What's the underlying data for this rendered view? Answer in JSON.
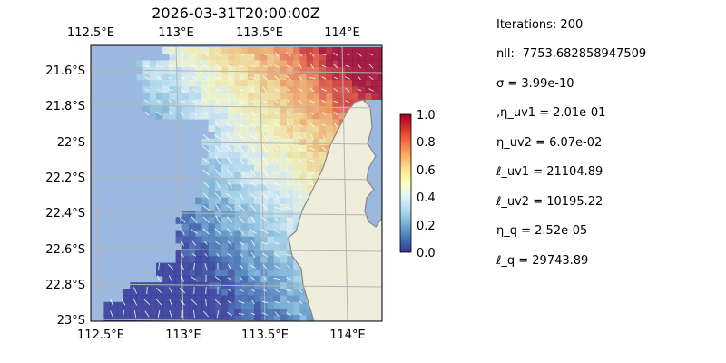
{
  "chart_data": {
    "type": "heatmap",
    "title": "2026-03-31T20:00:00Z",
    "x_ticks": [
      "112.5°E",
      "113°E",
      "113.5°E",
      "114°E"
    ],
    "y_ticks": [
      "21.6°S",
      "21.8°S",
      "22°S",
      "22.2°S",
      "22.4°S",
      "22.6°S",
      "22.8°S",
      "23°S"
    ],
    "x_range": [
      112.5,
      114.2
    ],
    "y_range": [
      -23.0,
      -21.45
    ],
    "colorbar": {
      "ticks": [
        "0.0",
        "0.2",
        "0.4",
        "0.6",
        "0.8",
        "1.0"
      ],
      "range": [
        0,
        1
      ],
      "colormap": "RdYlBu_r"
    },
    "colors": {
      "ocean": "#9ab8e0",
      "land": "#efeedd",
      "coast": "#888888",
      "grid": "#b4b4b4",
      "arrow": "#ffffff"
    }
  },
  "stats": {
    "iterations": "Iterations: 200",
    "nll": "nll: -7753.682858947509",
    "sigma": "σ = 3.99e-10",
    "eta_uv1": ",η_uv1 = 2.01e-01",
    "eta_uv2": "η_uv2 = 6.07e-02",
    "ell_uv1": "ℓ_uv1 = 21104.89",
    "ell_uv2": "ℓ_uv2 = 10195.22",
    "eta_q": "η_q = 2.52e-05",
    "ell_q": "ℓ_q = 29743.89"
  }
}
